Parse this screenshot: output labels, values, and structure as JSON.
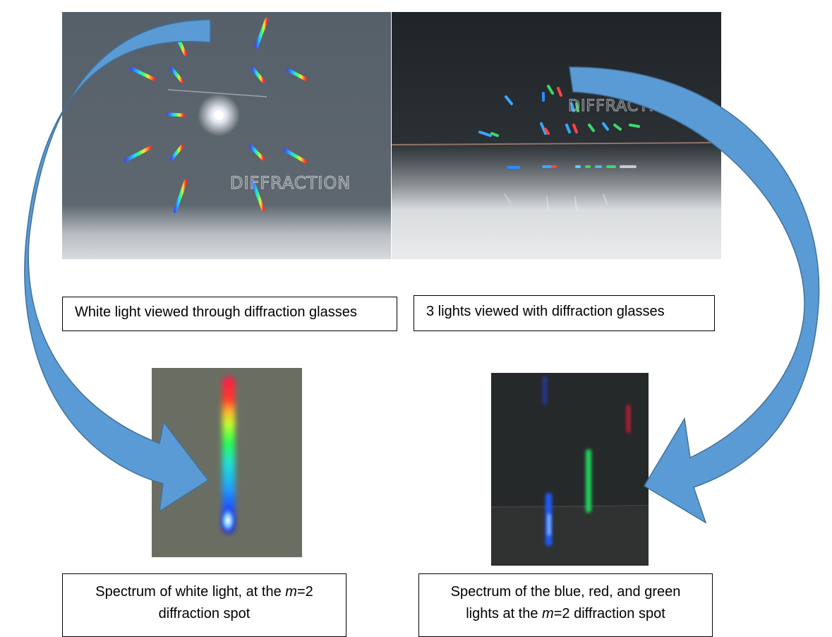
{
  "photos": {
    "white_light": {
      "overlay_text": "DIFFRACTION"
    },
    "three_lights": {
      "overlay_text": "DIFFRACTION"
    }
  },
  "captions": {
    "white_light_view": "White light viewed through diffraction glasses",
    "three_lights_view": "3 lights viewed with diffraction glasses",
    "white_spectrum": {
      "line1_prefix": "Spectrum of white light, at the ",
      "line1_var": "m",
      "line1_suffix": "=2",
      "line2": "diffraction spot"
    },
    "rgb_spectrum": {
      "line1": "Spectrum of the blue, red, and green",
      "line2_prefix": "lights at the ",
      "line2_var": "m",
      "line2_suffix": "=2 diffraction spot"
    }
  },
  "colors": {
    "arrow_fill": "#5b9bd5",
    "arrow_stroke": "#41719c"
  }
}
